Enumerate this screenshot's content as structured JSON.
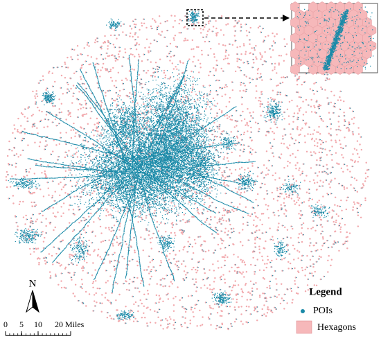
{
  "legend": {
    "title": "Legend",
    "items": [
      "POIs",
      "Hexagons"
    ]
  },
  "north_arrow": "N",
  "scale_bar": {
    "labels": [
      "0",
      "5",
      "10",
      "20 Miles"
    ]
  }
}
